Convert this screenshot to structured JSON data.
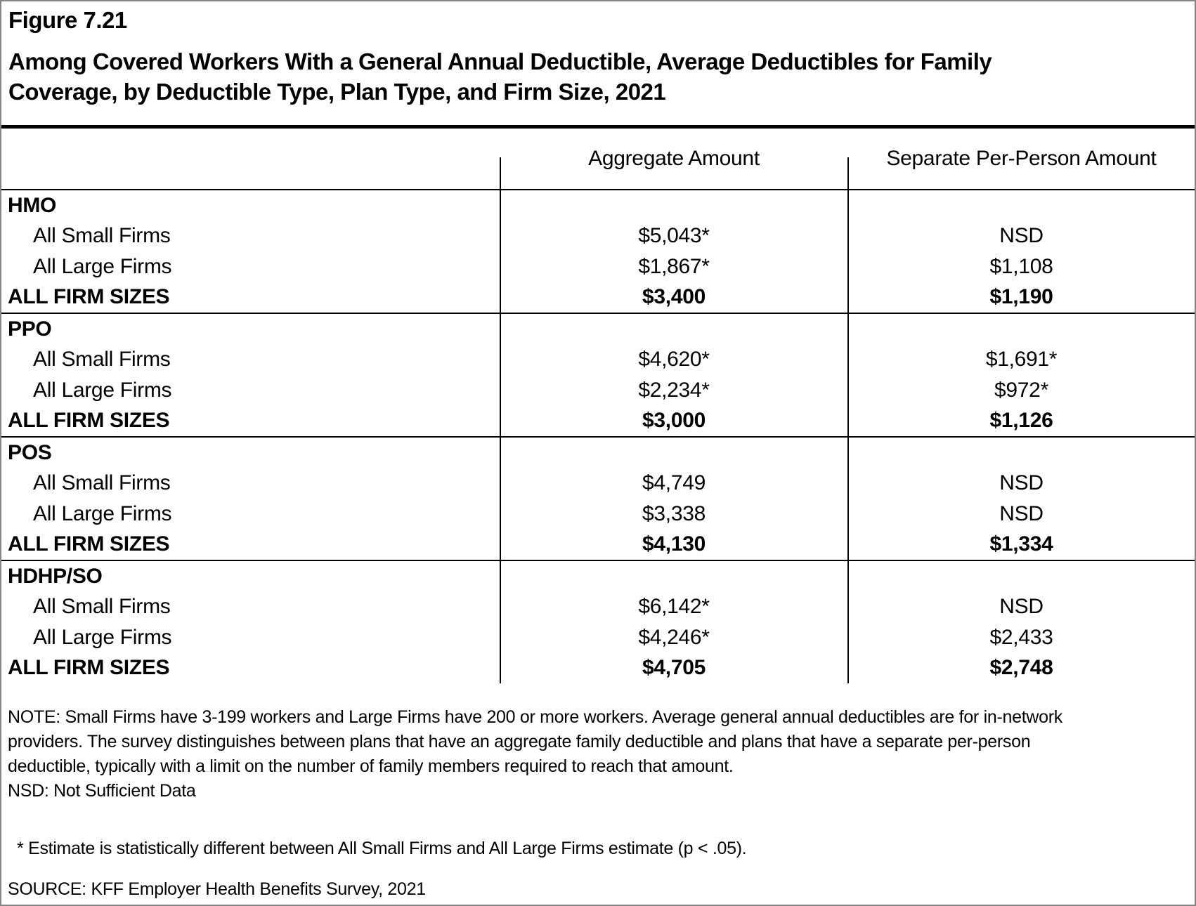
{
  "colors": {
    "text": "#000000",
    "page_border": "#858585",
    "rule": "#000000",
    "background": "#ffffff"
  },
  "header": {
    "figure_number": "Figure 7.21",
    "title_line1": "Among Covered Workers With a General Annual Deductible, Average Deductibles for Family",
    "title_line2": "Coverage, by Deductible Type, Plan Type, and Firm Size, 2021"
  },
  "table": {
    "columns": [
      "",
      "Aggregate Amount",
      "Separate Per-Person Amount"
    ],
    "sections": [
      {
        "plan_type": "HMO",
        "rows": [
          {
            "label": "All Small Firms",
            "aggregate": "$5,043*",
            "separate": "NSD"
          },
          {
            "label": "All Large Firms",
            "aggregate": "$1,867*",
            "separate": "$1,108"
          },
          {
            "label": "ALL FIRM SIZES",
            "aggregate": "$3,400",
            "separate": "$1,190"
          }
        ]
      },
      {
        "plan_type": "PPO",
        "rows": [
          {
            "label": "All Small Firms",
            "aggregate": "$4,620*",
            "separate": "$1,691*"
          },
          {
            "label": "All Large Firms",
            "aggregate": "$2,234*",
            "separate": "$972*"
          },
          {
            "label": "ALL FIRM SIZES",
            "aggregate": "$3,000",
            "separate": "$1,126"
          }
        ]
      },
      {
        "plan_type": "POS",
        "rows": [
          {
            "label": "All Small Firms",
            "aggregate": "$4,749",
            "separate": "NSD"
          },
          {
            "label": "All Large Firms",
            "aggregate": "$3,338",
            "separate": "NSD"
          },
          {
            "label": "ALL FIRM SIZES",
            "aggregate": "$4,130",
            "separate": "$1,334"
          }
        ]
      },
      {
        "plan_type": "HDHP/SO",
        "rows": [
          {
            "label": "All Small Firms",
            "aggregate": "$6,142*",
            "separate": "NSD"
          },
          {
            "label": "All Large Firms",
            "aggregate": "$4,246*",
            "separate": "$2,433"
          },
          {
            "label": "ALL FIRM SIZES",
            "aggregate": "$4,705",
            "separate": "$2,748"
          }
        ]
      }
    ]
  },
  "notes": {
    "note_lines": [
      "NOTE: Small Firms have 3-199 workers and Large Firms have 200 or more workers. Average general annual deductibles are for in-network",
      "providers. The survey distinguishes between plans that have an aggregate family deductible and plans that have a separate per-person",
      "deductible, typically with a limit on the number of family members required to reach that amount."
    ],
    "nsd_note": "NSD: Not Sufficient Data",
    "asterisk_note": "* Estimate is statistically different between All Small Firms and All Large Firms estimate (p < .05).",
    "source": "SOURCE: KFF Employer Health Benefits Survey, 2021"
  }
}
